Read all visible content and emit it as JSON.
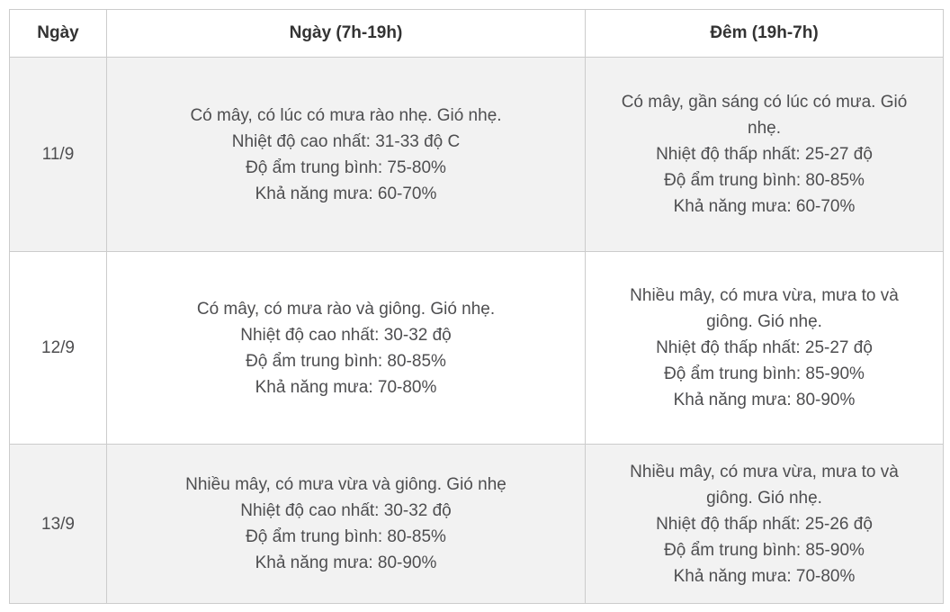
{
  "colors": {
    "row_stripe": "#f2f2f2",
    "row_plain": "#ffffff",
    "border": "#cccccc",
    "body_text": "#4e4e50",
    "header_text": "#333333"
  },
  "table": {
    "columns": {
      "date_label": "Ngày",
      "day_label": "Ngày (7h-19h)",
      "night_label": "Đêm (19h-7h)"
    },
    "rows": [
      {
        "date": "11/9",
        "day": [
          "Có mây, có lúc có mưa rào nhẹ. Gió nhẹ.",
          "Nhiệt độ cao nhất: 31-33 độ C",
          "Độ ẩm trung bình: 75-80%",
          "Khả năng mưa: 60-70%"
        ],
        "night": [
          "Có mây, gần sáng có lúc có mưa. Gió nhẹ.",
          "Nhiệt độ thấp nhất: 25-27 độ",
          "Độ ẩm trung bình: 80-85%",
          "Khả năng mưa: 60-70%"
        ]
      },
      {
        "date": "12/9",
        "day": [
          "Có mây, có mưa rào và giông. Gió nhẹ.",
          "Nhiệt độ cao nhất: 30-32 độ",
          "Độ ẩm trung bình: 80-85%",
          "Khả năng mưa: 70-80%"
        ],
        "night": [
          "Nhiều mây, có mưa vừa, mưa to và giông. Gió nhẹ.",
          "Nhiệt độ thấp nhất: 25-27 độ",
          "Độ ẩm trung bình: 85-90%",
          "Khả năng mưa: 80-90%"
        ]
      },
      {
        "date": "13/9",
        "day": [
          "Nhiều mây, có mưa vừa và giông. Gió nhẹ",
          "Nhiệt độ cao nhất: 30-32 độ",
          "Độ ẩm trung bình: 80-85%",
          "Khả năng mưa: 80-90%"
        ],
        "night": [
          "Nhiều mây, có mưa vừa, mưa to và giông. Gió nhẹ.",
          "Nhiệt độ thấp nhất: 25-26 độ",
          "Độ ẩm trung bình: 85-90%",
          "Khả năng mưa: 70-80%"
        ]
      }
    ]
  }
}
